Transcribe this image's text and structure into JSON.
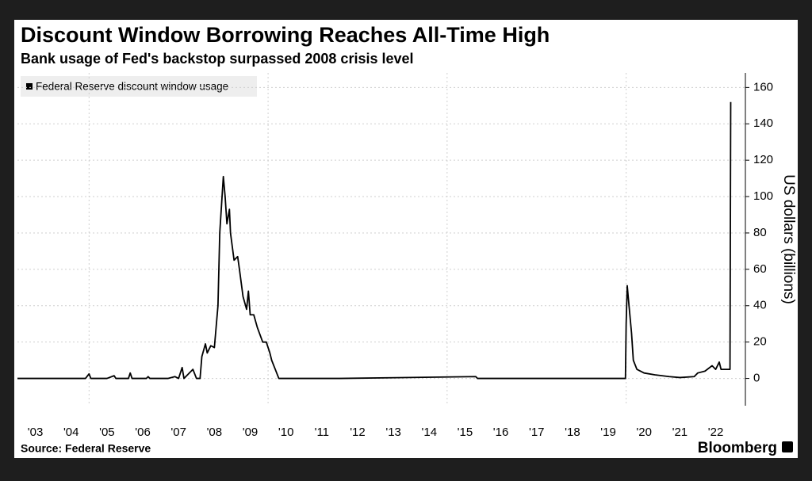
{
  "chart_data": {
    "type": "line",
    "title": "Discount Window Borrowing Reaches All-Time High",
    "subtitle": "Bank usage of Fed's backstop surpassed 2008 crisis level",
    "y_axis_label": "US dollars (billions)",
    "source": "Source: Federal Reserve",
    "brand": "Bloomberg",
    "legend_position": "top-left",
    "grid": true,
    "x_grid": [
      2005,
      2010,
      2015,
      2020
    ],
    "xlim": [
      2003,
      2023.33
    ],
    "xticks": [
      {
        "value": 2003.5,
        "label": "'03"
      },
      {
        "value": 2004.5,
        "label": "'04"
      },
      {
        "value": 2005.5,
        "label": "'05"
      },
      {
        "value": 2006.5,
        "label": "'06"
      },
      {
        "value": 2007.5,
        "label": "'07"
      },
      {
        "value": 2008.5,
        "label": "'08"
      },
      {
        "value": 2009.5,
        "label": "'09"
      },
      {
        "value": 2010.5,
        "label": "'10"
      },
      {
        "value": 2011.5,
        "label": "'11"
      },
      {
        "value": 2012.5,
        "label": "'12"
      },
      {
        "value": 2013.5,
        "label": "'13"
      },
      {
        "value": 2014.5,
        "label": "'14"
      },
      {
        "value": 2015.5,
        "label": "'15"
      },
      {
        "value": 2016.5,
        "label": "'16"
      },
      {
        "value": 2017.5,
        "label": "'17"
      },
      {
        "value": 2018.5,
        "label": "'18"
      },
      {
        "value": 2019.5,
        "label": "'19"
      },
      {
        "value": 2020.5,
        "label": "'20"
      },
      {
        "value": 2021.5,
        "label": "'21"
      },
      {
        "value": 2022.5,
        "label": "'22"
      }
    ],
    "ylim": [
      -15,
      168
    ],
    "yticks": [
      0,
      20,
      40,
      60,
      80,
      100,
      120,
      140,
      160
    ],
    "x": [
      2003.0,
      2004.9,
      2005.0,
      2005.05,
      2005.5,
      2005.7,
      2005.75,
      2006.1,
      2006.15,
      2006.2,
      2006.6,
      2006.65,
      2006.7,
      2007.2,
      2007.4,
      2007.5,
      2007.6,
      2007.65,
      2007.9,
      2008.0,
      2008.1,
      2008.15,
      2008.25,
      2008.3,
      2008.4,
      2008.5,
      2008.6,
      2008.65,
      2008.75,
      2008.8,
      2008.85,
      2008.92,
      2008.95,
      2009.05,
      2009.15,
      2009.2,
      2009.3,
      2009.4,
      2009.45,
      2009.5,
      2009.6,
      2009.7,
      2009.85,
      2009.95,
      2010.05,
      2010.1,
      2010.2,
      2010.3,
      2012.0,
      2015.8,
      2015.85,
      2019.98,
      2020.0,
      2020.03,
      2020.08,
      2020.15,
      2020.2,
      2020.3,
      2020.5,
      2020.8,
      2021.2,
      2021.5,
      2021.9,
      2022.0,
      2022.2,
      2022.4,
      2022.5,
      2022.6,
      2022.65,
      2022.85,
      2022.9,
      2022.92
    ],
    "series": [
      {
        "name": "Federal Reserve discount window usage",
        "color": "#000000",
        "values": [
          0,
          0,
          2.5,
          0,
          0,
          1.5,
          0,
          0,
          3,
          0,
          0,
          1,
          0,
          0,
          1,
          0,
          6,
          0,
          5,
          0,
          0,
          12,
          19,
          14,
          18,
          17,
          40,
          80,
          111,
          100,
          85,
          93,
          80,
          65,
          67,
          60,
          45,
          38,
          48,
          35,
          35,
          28,
          20,
          20,
          14,
          10,
          5,
          0,
          0,
          1,
          0,
          0,
          30,
          51,
          40,
          25,
          10,
          5,
          3,
          2,
          1,
          0.5,
          1,
          3,
          4,
          7,
          5,
          9,
          5,
          5,
          5,
          152
        ]
      }
    ]
  }
}
